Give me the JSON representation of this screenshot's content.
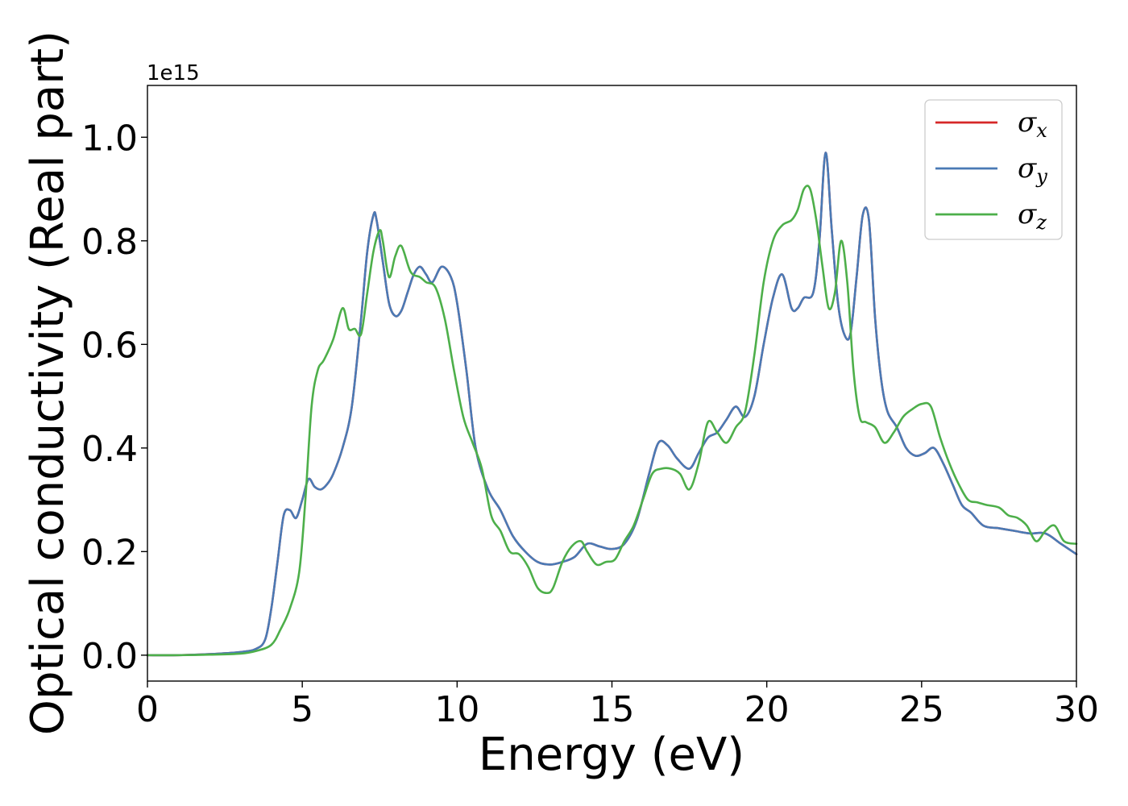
{
  "chart_data": {
    "type": "line",
    "xlabel": "Energy (eV)",
    "ylabel": "Optical conductivity (Real part)",
    "y_offset_label": "1e15",
    "xlim": [
      0,
      30
    ],
    "ylim": [
      -0.05,
      1.1
    ],
    "x_ticks": [
      0,
      5,
      10,
      15,
      20,
      25,
      30
    ],
    "x_tick_labels": [
      "0",
      "5",
      "10",
      "15",
      "20",
      "25",
      "30"
    ],
    "y_ticks": [
      0.0,
      0.2,
      0.4,
      0.6,
      0.8,
      1.0
    ],
    "y_tick_labels": [
      "0.0",
      "0.2",
      "0.4",
      "0.6",
      "0.8",
      "1.0"
    ],
    "grid": false,
    "legend_position": "top-right",
    "series": [
      {
        "name": "σx",
        "symbol": "σ",
        "subscript": "x",
        "color": "#d62728",
        "x": [
          0,
          1,
          2,
          3,
          3.5,
          3.8,
          4.0,
          4.2,
          4.4,
          4.6,
          4.8,
          5.0,
          5.2,
          5.4,
          5.6,
          5.8,
          6.0,
          6.3,
          6.6,
          6.9,
          7.1,
          7.3,
          7.4,
          7.6,
          7.8,
          8.0,
          8.2,
          8.4,
          8.6,
          8.8,
          9.0,
          9.2,
          9.5,
          9.8,
          10.0,
          10.3,
          10.6,
          11.0,
          11.4,
          11.8,
          12.2,
          12.6,
          13.0,
          13.4,
          13.8,
          14.2,
          14.6,
          15.0,
          15.4,
          15.8,
          16.2,
          16.5,
          16.8,
          17.1,
          17.5,
          17.8,
          18.1,
          18.4,
          18.7,
          19.0,
          19.3,
          19.6,
          19.9,
          20.2,
          20.5,
          20.8,
          21.0,
          21.2,
          21.5,
          21.7,
          21.9,
          22.1,
          22.3,
          22.5,
          22.7,
          22.9,
          23.1,
          23.3,
          23.5,
          23.7,
          23.9,
          24.2,
          24.5,
          24.8,
          25.1,
          25.4,
          25.7,
          26.0,
          26.3,
          26.6,
          27.0,
          27.5,
          28.0,
          28.5,
          29.0,
          29.5,
          30.0
        ],
        "y": [
          0.0,
          0.0,
          0.002,
          0.006,
          0.012,
          0.03,
          0.09,
          0.18,
          0.27,
          0.28,
          0.265,
          0.3,
          0.34,
          0.325,
          0.32,
          0.33,
          0.35,
          0.4,
          0.48,
          0.65,
          0.78,
          0.85,
          0.84,
          0.76,
          0.68,
          0.655,
          0.665,
          0.7,
          0.735,
          0.75,
          0.735,
          0.72,
          0.75,
          0.73,
          0.68,
          0.55,
          0.4,
          0.32,
          0.28,
          0.23,
          0.2,
          0.18,
          0.175,
          0.18,
          0.19,
          0.215,
          0.21,
          0.205,
          0.215,
          0.26,
          0.35,
          0.41,
          0.405,
          0.38,
          0.36,
          0.39,
          0.42,
          0.43,
          0.455,
          0.48,
          0.46,
          0.5,
          0.6,
          0.69,
          0.735,
          0.67,
          0.67,
          0.69,
          0.7,
          0.8,
          0.97,
          0.82,
          0.68,
          0.62,
          0.62,
          0.73,
          0.85,
          0.84,
          0.65,
          0.53,
          0.47,
          0.44,
          0.4,
          0.385,
          0.39,
          0.4,
          0.37,
          0.33,
          0.29,
          0.275,
          0.25,
          0.245,
          0.24,
          0.235,
          0.235,
          0.215,
          0.195
        ]
      },
      {
        "name": "σy",
        "symbol": "σ",
        "subscript": "y",
        "color": "#4a7ab5",
        "x": [
          0,
          1,
          2,
          3,
          3.5,
          3.8,
          4.0,
          4.2,
          4.4,
          4.6,
          4.8,
          5.0,
          5.2,
          5.4,
          5.6,
          5.8,
          6.0,
          6.3,
          6.6,
          6.9,
          7.1,
          7.3,
          7.4,
          7.6,
          7.8,
          8.0,
          8.2,
          8.4,
          8.6,
          8.8,
          9.0,
          9.2,
          9.5,
          9.8,
          10.0,
          10.3,
          10.6,
          11.0,
          11.4,
          11.8,
          12.2,
          12.6,
          13.0,
          13.4,
          13.8,
          14.2,
          14.6,
          15.0,
          15.4,
          15.8,
          16.2,
          16.5,
          16.8,
          17.1,
          17.5,
          17.8,
          18.1,
          18.4,
          18.7,
          19.0,
          19.3,
          19.6,
          19.9,
          20.2,
          20.5,
          20.8,
          21.0,
          21.2,
          21.5,
          21.7,
          21.9,
          22.1,
          22.3,
          22.5,
          22.7,
          22.9,
          23.1,
          23.3,
          23.5,
          23.7,
          23.9,
          24.2,
          24.5,
          24.8,
          25.1,
          25.4,
          25.7,
          26.0,
          26.3,
          26.6,
          27.0,
          27.5,
          28.0,
          28.5,
          29.0,
          29.5,
          30.0
        ],
        "y": [
          0.0,
          0.0,
          0.002,
          0.006,
          0.012,
          0.03,
          0.09,
          0.18,
          0.27,
          0.28,
          0.265,
          0.3,
          0.34,
          0.325,
          0.32,
          0.33,
          0.35,
          0.4,
          0.48,
          0.65,
          0.78,
          0.85,
          0.84,
          0.76,
          0.68,
          0.655,
          0.665,
          0.7,
          0.735,
          0.75,
          0.735,
          0.72,
          0.75,
          0.73,
          0.68,
          0.55,
          0.4,
          0.32,
          0.28,
          0.23,
          0.2,
          0.18,
          0.175,
          0.18,
          0.19,
          0.215,
          0.21,
          0.205,
          0.215,
          0.26,
          0.35,
          0.41,
          0.405,
          0.38,
          0.36,
          0.39,
          0.42,
          0.43,
          0.455,
          0.48,
          0.46,
          0.5,
          0.6,
          0.69,
          0.735,
          0.67,
          0.67,
          0.69,
          0.7,
          0.8,
          0.97,
          0.82,
          0.68,
          0.62,
          0.62,
          0.73,
          0.85,
          0.84,
          0.65,
          0.53,
          0.47,
          0.44,
          0.4,
          0.385,
          0.39,
          0.4,
          0.37,
          0.33,
          0.29,
          0.275,
          0.25,
          0.245,
          0.24,
          0.235,
          0.235,
          0.215,
          0.195
        ]
      },
      {
        "name": "σz",
        "symbol": "σ",
        "subscript": "z",
        "color": "#4daf4a",
        "x": [
          0,
          1,
          2,
          3,
          3.5,
          4.0,
          4.3,
          4.6,
          4.9,
          5.1,
          5.3,
          5.5,
          5.7,
          6.0,
          6.3,
          6.5,
          6.7,
          6.9,
          7.1,
          7.3,
          7.5,
          7.6,
          7.8,
          8.0,
          8.2,
          8.5,
          8.8,
          9.0,
          9.3,
          9.6,
          9.9,
          10.2,
          10.5,
          10.8,
          11.1,
          11.4,
          11.7,
          12.0,
          12.3,
          12.6,
          12.9,
          13.1,
          13.4,
          13.7,
          14.0,
          14.2,
          14.5,
          14.8,
          15.1,
          15.4,
          15.7,
          16.0,
          16.3,
          16.6,
          16.9,
          17.2,
          17.5,
          17.8,
          18.1,
          18.4,
          18.7,
          19.0,
          19.3,
          19.6,
          19.9,
          20.2,
          20.5,
          20.8,
          21.0,
          21.2,
          21.4,
          21.6,
          21.8,
          22.0,
          22.2,
          22.4,
          22.6,
          22.8,
          23.0,
          23.2,
          23.5,
          23.8,
          24.1,
          24.4,
          24.7,
          25.0,
          25.3,
          25.6,
          25.9,
          26.2,
          26.5,
          26.8,
          27.1,
          27.5,
          27.8,
          28.1,
          28.4,
          28.7,
          29.0,
          29.3,
          29.6,
          30.0
        ],
        "y": [
          0.0,
          0.0,
          0.001,
          0.003,
          0.008,
          0.02,
          0.05,
          0.09,
          0.16,
          0.3,
          0.48,
          0.55,
          0.57,
          0.61,
          0.67,
          0.63,
          0.63,
          0.62,
          0.7,
          0.78,
          0.82,
          0.8,
          0.73,
          0.77,
          0.79,
          0.74,
          0.73,
          0.72,
          0.71,
          0.65,
          0.55,
          0.46,
          0.41,
          0.36,
          0.27,
          0.24,
          0.2,
          0.195,
          0.17,
          0.13,
          0.12,
          0.13,
          0.18,
          0.21,
          0.22,
          0.2,
          0.175,
          0.18,
          0.185,
          0.22,
          0.25,
          0.3,
          0.35,
          0.36,
          0.36,
          0.35,
          0.32,
          0.37,
          0.45,
          0.43,
          0.41,
          0.44,
          0.47,
          0.58,
          0.72,
          0.8,
          0.83,
          0.84,
          0.86,
          0.9,
          0.9,
          0.84,
          0.75,
          0.67,
          0.7,
          0.8,
          0.72,
          0.55,
          0.46,
          0.45,
          0.44,
          0.41,
          0.43,
          0.46,
          0.475,
          0.485,
          0.48,
          0.42,
          0.37,
          0.33,
          0.3,
          0.295,
          0.29,
          0.285,
          0.27,
          0.265,
          0.25,
          0.22,
          0.24,
          0.25,
          0.22,
          0.215
        ]
      }
    ]
  }
}
